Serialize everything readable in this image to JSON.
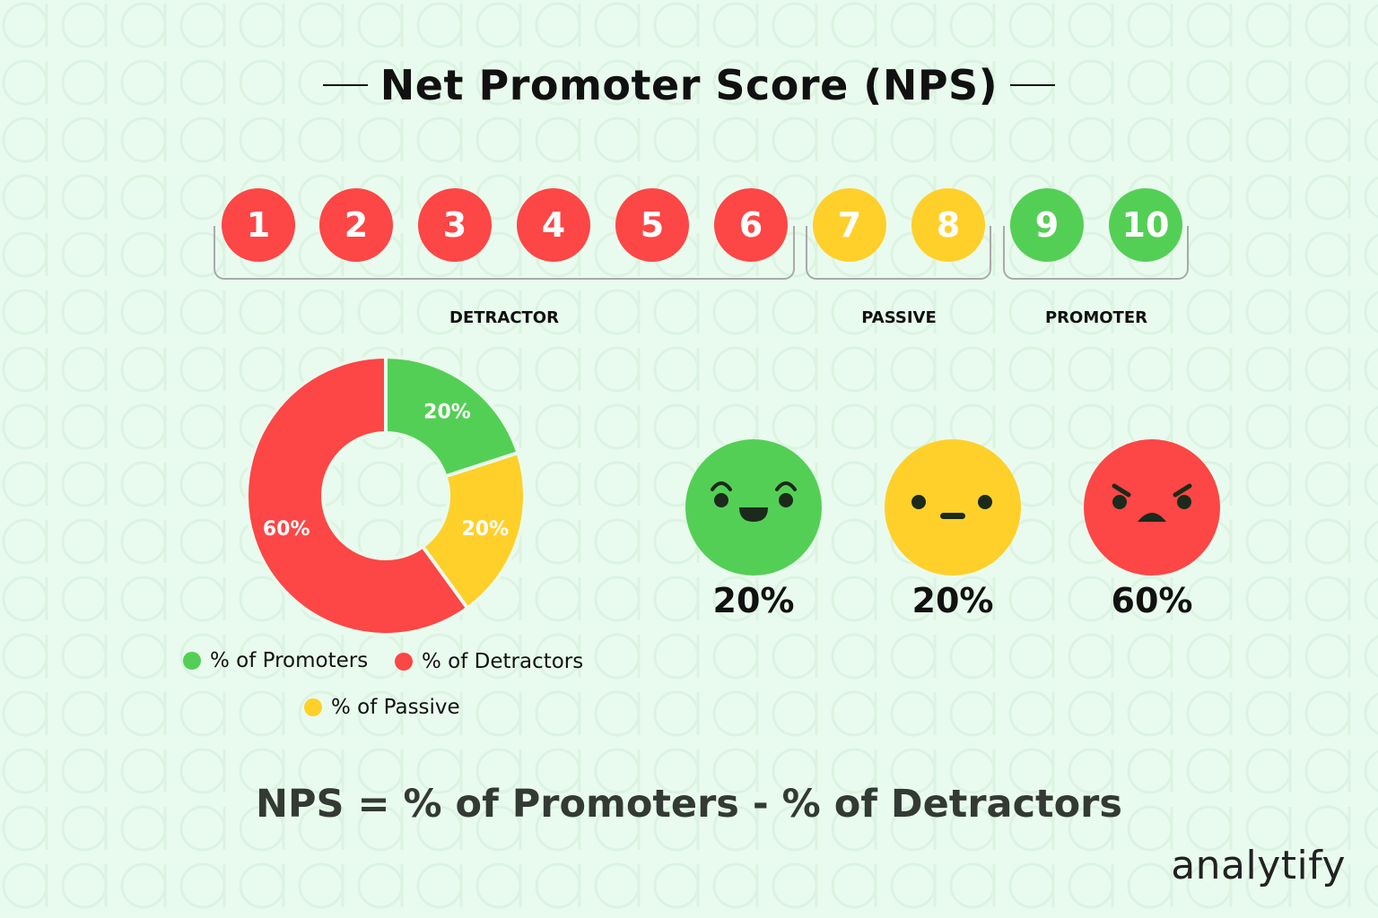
{
  "title": "Net Promoter Score (NPS)",
  "colors": {
    "detractor": "#fd4646",
    "passive": "#ffd02a",
    "promoter": "#54cf55",
    "background": "#e9fbee"
  },
  "scale": [
    {
      "label": "1",
      "group": "detractor"
    },
    {
      "label": "2",
      "group": "detractor"
    },
    {
      "label": "3",
      "group": "detractor"
    },
    {
      "label": "4",
      "group": "detractor"
    },
    {
      "label": "5",
      "group": "detractor"
    },
    {
      "label": "6",
      "group": "detractor"
    },
    {
      "label": "7",
      "group": "passive"
    },
    {
      "label": "8",
      "group": "passive"
    },
    {
      "label": "9",
      "group": "promoter"
    },
    {
      "label": "10",
      "group": "promoter"
    }
  ],
  "groups": {
    "detractor": "DETRACTOR",
    "passive": "PASSIVE",
    "promoter": "PROMOTER"
  },
  "chart_data": {
    "type": "pie",
    "variant": "donut",
    "categories": [
      "% of Promoters",
      "% of Passive",
      "% of Detractors"
    ],
    "values": [
      20,
      20,
      60
    ],
    "data_labels": [
      "20%",
      "20%",
      "60%"
    ],
    "colors": [
      "#54cf55",
      "#ffd02a",
      "#fd4646"
    ],
    "legend_placement": "bottom",
    "legend": [
      {
        "label": "% of Promoters",
        "color": "#54cf55"
      },
      {
        "label": "% of Detractors",
        "color": "#fd4646"
      },
      {
        "label": "% of Passive",
        "color": "#ffd02a"
      }
    ]
  },
  "faces": [
    {
      "mood": "happy-face-icon",
      "value": "20%",
      "color": "#54cf55"
    },
    {
      "mood": "neutral-face-icon",
      "value": "20%",
      "color": "#ffd02a"
    },
    {
      "mood": "angry-face-icon",
      "value": "60%",
      "color": "#fd4646"
    }
  ],
  "formula": "NPS = % of Promoters - % of Detractors",
  "logo": "analytify"
}
